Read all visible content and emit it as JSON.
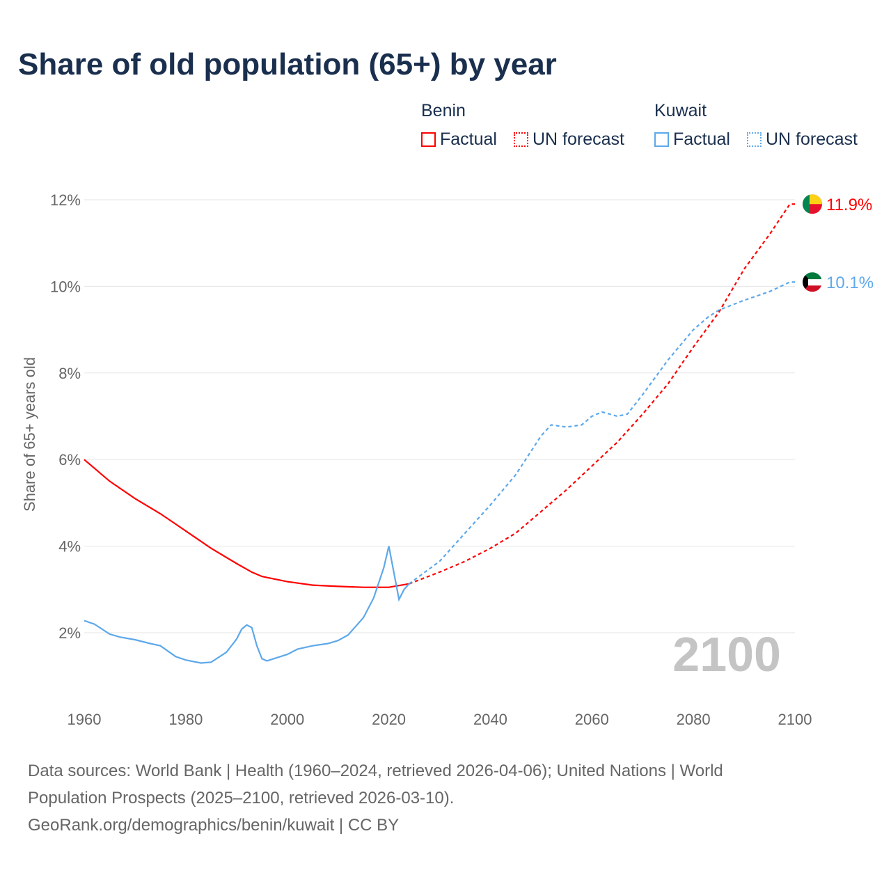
{
  "chart_data": {
    "type": "line",
    "title": "Share of old population (65+) by year",
    "ylabel": "Share of 65+ years old",
    "xlabel": "",
    "xlim": [
      1960,
      2100
    ],
    "ylim": [
      1,
      12
    ],
    "x_ticks": [
      "1960",
      "1980",
      "2000",
      "2020",
      "2040",
      "2060",
      "2080",
      "2100"
    ],
    "y_ticks": [
      "2%",
      "4%",
      "6%",
      "8%",
      "10%",
      "12%"
    ],
    "year_watermark": "2100",
    "legend": {
      "groups": [
        {
          "name": "Benin",
          "items": [
            "Factual",
            "UN forecast"
          ]
        },
        {
          "name": "Kuwait",
          "items": [
            "Factual",
            "UN forecast"
          ]
        }
      ]
    },
    "series": [
      {
        "name": "Benin",
        "color": "#ff0000",
        "end_label": "11.9%",
        "factual": [
          [
            1960,
            6.0
          ],
          [
            1965,
            5.5
          ],
          [
            1970,
            5.1
          ],
          [
            1975,
            4.75
          ],
          [
            1980,
            4.35
          ],
          [
            1985,
            3.95
          ],
          [
            1990,
            3.6
          ],
          [
            1993,
            3.4
          ],
          [
            1995,
            3.3
          ],
          [
            2000,
            3.18
          ],
          [
            2005,
            3.1
          ],
          [
            2010,
            3.07
          ],
          [
            2015,
            3.05
          ],
          [
            2020,
            3.05
          ],
          [
            2024,
            3.13
          ]
        ],
        "forecast": [
          [
            2024,
            3.13
          ],
          [
            2030,
            3.4
          ],
          [
            2035,
            3.65
          ],
          [
            2040,
            3.95
          ],
          [
            2045,
            4.3
          ],
          [
            2050,
            4.8
          ],
          [
            2055,
            5.3
          ],
          [
            2060,
            5.85
          ],
          [
            2065,
            6.4
          ],
          [
            2070,
            7.05
          ],
          [
            2075,
            7.75
          ],
          [
            2080,
            8.6
          ],
          [
            2085,
            9.4
          ],
          [
            2090,
            10.4
          ],
          [
            2095,
            11.2
          ],
          [
            2099,
            11.9
          ],
          [
            2100,
            11.9
          ]
        ]
      },
      {
        "name": "Kuwait",
        "color": "#5ea8ea",
        "end_label": "10.1%",
        "factual": [
          [
            1960,
            2.28
          ],
          [
            1962,
            2.2
          ],
          [
            1965,
            1.97
          ],
          [
            1967,
            1.9
          ],
          [
            1970,
            1.84
          ],
          [
            1973,
            1.75
          ],
          [
            1975,
            1.7
          ],
          [
            1978,
            1.45
          ],
          [
            1980,
            1.37
          ],
          [
            1983,
            1.3
          ],
          [
            1985,
            1.32
          ],
          [
            1988,
            1.55
          ],
          [
            1990,
            1.85
          ],
          [
            1991,
            2.08
          ],
          [
            1992,
            2.18
          ],
          [
            1993,
            2.12
          ],
          [
            1994,
            1.7
          ],
          [
            1995,
            1.4
          ],
          [
            1996,
            1.35
          ],
          [
            2000,
            1.5
          ],
          [
            2002,
            1.62
          ],
          [
            2005,
            1.7
          ],
          [
            2008,
            1.75
          ],
          [
            2010,
            1.82
          ],
          [
            2012,
            1.95
          ],
          [
            2015,
            2.35
          ],
          [
            2017,
            2.8
          ],
          [
            2019,
            3.5
          ],
          [
            2020,
            4.0
          ],
          [
            2022,
            2.77
          ],
          [
            2023,
            3.0
          ],
          [
            2024,
            3.13
          ]
        ],
        "forecast": [
          [
            2024,
            3.13
          ],
          [
            2030,
            3.65
          ],
          [
            2035,
            4.3
          ],
          [
            2040,
            4.95
          ],
          [
            2045,
            5.65
          ],
          [
            2050,
            6.55
          ],
          [
            2052,
            6.8
          ],
          [
            2055,
            6.75
          ],
          [
            2058,
            6.8
          ],
          [
            2060,
            7.0
          ],
          [
            2062,
            7.1
          ],
          [
            2065,
            7.0
          ],
          [
            2067,
            7.05
          ],
          [
            2070,
            7.5
          ],
          [
            2075,
            8.3
          ],
          [
            2080,
            9.0
          ],
          [
            2083,
            9.3
          ],
          [
            2085,
            9.45
          ],
          [
            2090,
            9.68
          ],
          [
            2095,
            9.88
          ],
          [
            2099,
            10.1
          ],
          [
            2100,
            10.1
          ]
        ]
      }
    ]
  },
  "footer": {
    "line1": "Data sources: World Bank | Health (1960–2024, retrieved 2026-04-06); United Nations | World",
    "line2": "Population Prospects (2025–2100, retrieved 2026-03-10).",
    "line3": "GeoRank.org/demographics/benin/kuwait | CC BY"
  }
}
